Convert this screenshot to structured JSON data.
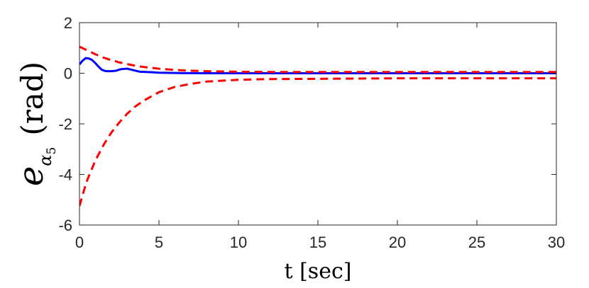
{
  "chart_data": {
    "type": "line",
    "xlabel": "t [sec]",
    "ylabel_main": "e",
    "ylabel_sub": "α",
    "ylabel_sub2": "5",
    "ylabel_unit": "(rad)",
    "xlim": [
      0,
      30
    ],
    "ylim": [
      -6,
      2
    ],
    "x_ticks": [
      0,
      5,
      10,
      15,
      20,
      25,
      30
    ],
    "y_ticks": [
      2,
      0,
      -2,
      -4,
      -6
    ],
    "grid": false,
    "series": [
      {
        "style": "solid",
        "color": "#0000ff",
        "x": [
          0,
          0.2,
          0.4,
          0.6,
          0.8,
          1.0,
          1.2,
          1.4,
          1.6,
          1.8,
          2.0,
          2.3,
          2.6,
          3.0,
          3.4,
          3.8,
          4.2,
          4.6,
          5.0,
          6,
          8,
          10,
          15,
          20,
          25,
          30
        ],
        "y": [
          0.35,
          0.5,
          0.6,
          0.58,
          0.52,
          0.4,
          0.26,
          0.14,
          0.09,
          0.08,
          0.08,
          0.1,
          0.16,
          0.18,
          0.12,
          0.06,
          0.05,
          0.04,
          0.02,
          0.01,
          0.0,
          0.0,
          0.0,
          0.0,
          0.0,
          0.0
        ]
      },
      {
        "style": "dashed",
        "color": "#ff0000",
        "x": [
          0,
          0.5,
          1,
          1.5,
          2,
          2.5,
          3,
          3.5,
          4,
          5,
          6,
          7,
          8,
          10,
          12,
          15,
          20,
          25,
          30
        ],
        "y": [
          1.05,
          0.9,
          0.75,
          0.62,
          0.52,
          0.43,
          0.36,
          0.3,
          0.25,
          0.18,
          0.13,
          0.1,
          0.08,
          0.06,
          0.05,
          0.05,
          0.05,
          0.05,
          0.05
        ]
      },
      {
        "style": "dashed",
        "color": "#ff0000",
        "x": [
          0,
          0.25,
          0.5,
          1,
          1.5,
          2,
          2.5,
          3,
          3.5,
          4,
          4.5,
          5,
          6,
          7,
          8,
          10,
          12,
          15,
          20,
          25,
          30
        ],
        "y": [
          -5.25,
          -4.7,
          -4.2,
          -3.45,
          -2.85,
          -2.35,
          -1.95,
          -1.6,
          -1.32,
          -1.1,
          -0.92,
          -0.75,
          -0.54,
          -0.42,
          -0.33,
          -0.26,
          -0.23,
          -0.22,
          -0.2,
          -0.2,
          -0.2
        ]
      }
    ]
  }
}
